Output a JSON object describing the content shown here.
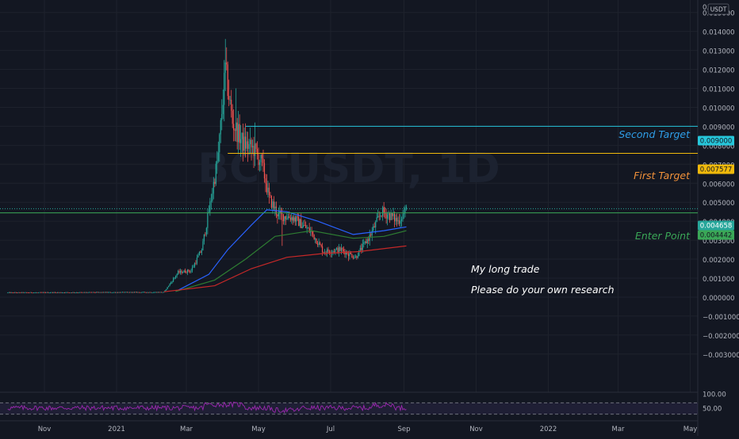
{
  "chart_data": {
    "type": "candlestick",
    "watermark": "BCTUSDT, 1D",
    "currency_label": "USDT",
    "price_axis": {
      "labels": [
        "0.",
        "0.015000",
        "0.014000",
        "0.013000",
        "0.012000",
        "0.011000",
        "0.010000",
        "0.009000",
        "0.008000",
        "0.007000",
        "0.006000",
        "0.005000",
        "0.004000",
        "0.003000",
        "0.002000",
        "0.001000",
        "0.000000",
        "−0.001000",
        "−0.002000",
        "−0.003000"
      ],
      "values": [
        0.0159,
        0.015,
        0.014,
        0.013,
        0.012,
        0.011,
        0.01,
        0.009,
        0.008,
        0.007,
        0.006,
        0.005,
        0.004,
        0.003,
        0.002,
        0.001,
        0.0,
        -0.001,
        -0.002,
        -0.003
      ]
    },
    "rsi_axis": {
      "labels": [
        "100.00",
        "50.00"
      ],
      "values": [
        100,
        50
      ],
      "bands": [
        70,
        30
      ]
    },
    "time_axis": {
      "labels": [
        "Nov",
        "2021",
        "Mar",
        "May",
        "Jul",
        "Sep",
        "Nov",
        "2022",
        "Mar",
        "May"
      ],
      "dates": [
        "2020-11-01",
        "2021-01-01",
        "2021-03-01",
        "2021-05-01",
        "2021-07-01",
        "2021-09-01",
        "2021-11-01",
        "2022-01-01",
        "2022-03-01",
        "2022-05-01"
      ]
    },
    "levels": [
      {
        "name": "Second Target",
        "price": 0.009,
        "badge": "0.009000",
        "color": "#26c6da",
        "label_color": "#2f9ee8",
        "start_date": "2021-04-20"
      },
      {
        "name": "First Target",
        "price": 0.007577,
        "badge": "0.007577",
        "color": "#f0b90b",
        "label_color": "#f0913a",
        "start_date": "2021-04-05"
      },
      {
        "name": "Enter Point",
        "price": 0.004442,
        "badge": "0.004442",
        "color": "#3aa757",
        "label_color": "#3aa757",
        "start_date": "2020-09-20"
      }
    ],
    "current_price": {
      "value": 0.004658,
      "badge": "0.004658",
      "color": "#26a69a"
    },
    "annotations": [
      "My long trade",
      "Please do your own research"
    ],
    "candle_series": {
      "date_range": [
        "2020-10-01",
        "2021-09-03"
      ],
      "anchors": [
        [
          "2020-10-01",
          0.00024
        ],
        [
          "2021-02-10",
          0.00026
        ],
        [
          "2021-02-22",
          0.0013
        ],
        [
          "2021-03-05",
          0.0014
        ],
        [
          "2021-03-14",
          0.0025
        ],
        [
          "2021-03-22",
          0.0052
        ],
        [
          "2021-03-28",
          0.0075
        ],
        [
          "2021-04-03",
          0.012
        ],
        [
          "2021-04-09",
          0.0092
        ],
        [
          "2021-04-18",
          0.0081
        ],
        [
          "2021-04-27",
          0.0078
        ],
        [
          "2021-05-04",
          0.007
        ],
        [
          "2021-05-10",
          0.0052
        ],
        [
          "2021-05-18",
          0.0043
        ],
        [
          "2021-05-30",
          0.0042
        ],
        [
          "2021-06-15",
          0.0034
        ],
        [
          "2021-06-25",
          0.0024
        ],
        [
          "2021-07-10",
          0.0025
        ],
        [
          "2021-07-22",
          0.0021
        ],
        [
          "2021-08-03",
          0.0032
        ],
        [
          "2021-08-13",
          0.0045
        ],
        [
          "2021-08-20",
          0.0043
        ],
        [
          "2021-08-27",
          0.004
        ],
        [
          "2021-09-03",
          0.0046
        ]
      ]
    },
    "moving_averages": [
      {
        "color": "#2962ff",
        "anchors": [
          [
            "2021-02-20",
            0.0003
          ],
          [
            "2021-03-20",
            0.0012
          ],
          [
            "2021-04-05",
            0.0025
          ],
          [
            "2021-04-25",
            0.0038
          ],
          [
            "2021-05-08",
            0.0046
          ],
          [
            "2021-05-25",
            0.0045
          ],
          [
            "2021-06-20",
            0.004
          ],
          [
            "2021-07-20",
            0.0033
          ],
          [
            "2021-08-15",
            0.0035
          ],
          [
            "2021-09-03",
            0.0037
          ]
        ]
      },
      {
        "color": "#2e7d32",
        "anchors": [
          [
            "2021-02-20",
            0.0003
          ],
          [
            "2021-03-25",
            0.0009
          ],
          [
            "2021-04-20",
            0.002
          ],
          [
            "2021-05-15",
            0.0032
          ],
          [
            "2021-06-15",
            0.0035
          ],
          [
            "2021-07-20",
            0.0031
          ],
          [
            "2021-08-15",
            0.0032
          ],
          [
            "2021-09-03",
            0.0035
          ]
        ]
      },
      {
        "color": "#c62828",
        "anchors": [
          [
            "2021-02-10",
            0.00028
          ],
          [
            "2021-03-25",
            0.0006
          ],
          [
            "2021-04-25",
            0.0015
          ],
          [
            "2021-05-25",
            0.0021
          ],
          [
            "2021-06-25",
            0.0023
          ],
          [
            "2021-07-25",
            0.0024
          ],
          [
            "2021-09-03",
            0.0027
          ]
        ]
      }
    ],
    "colors": {
      "background": "#131722",
      "up": "#26a69a",
      "down": "#ef5350",
      "rsi": "#9c27b0",
      "rsi_fill": "#7e57c2",
      "grid": "#1e222d",
      "axis_text": "#b2b5be"
    }
  }
}
